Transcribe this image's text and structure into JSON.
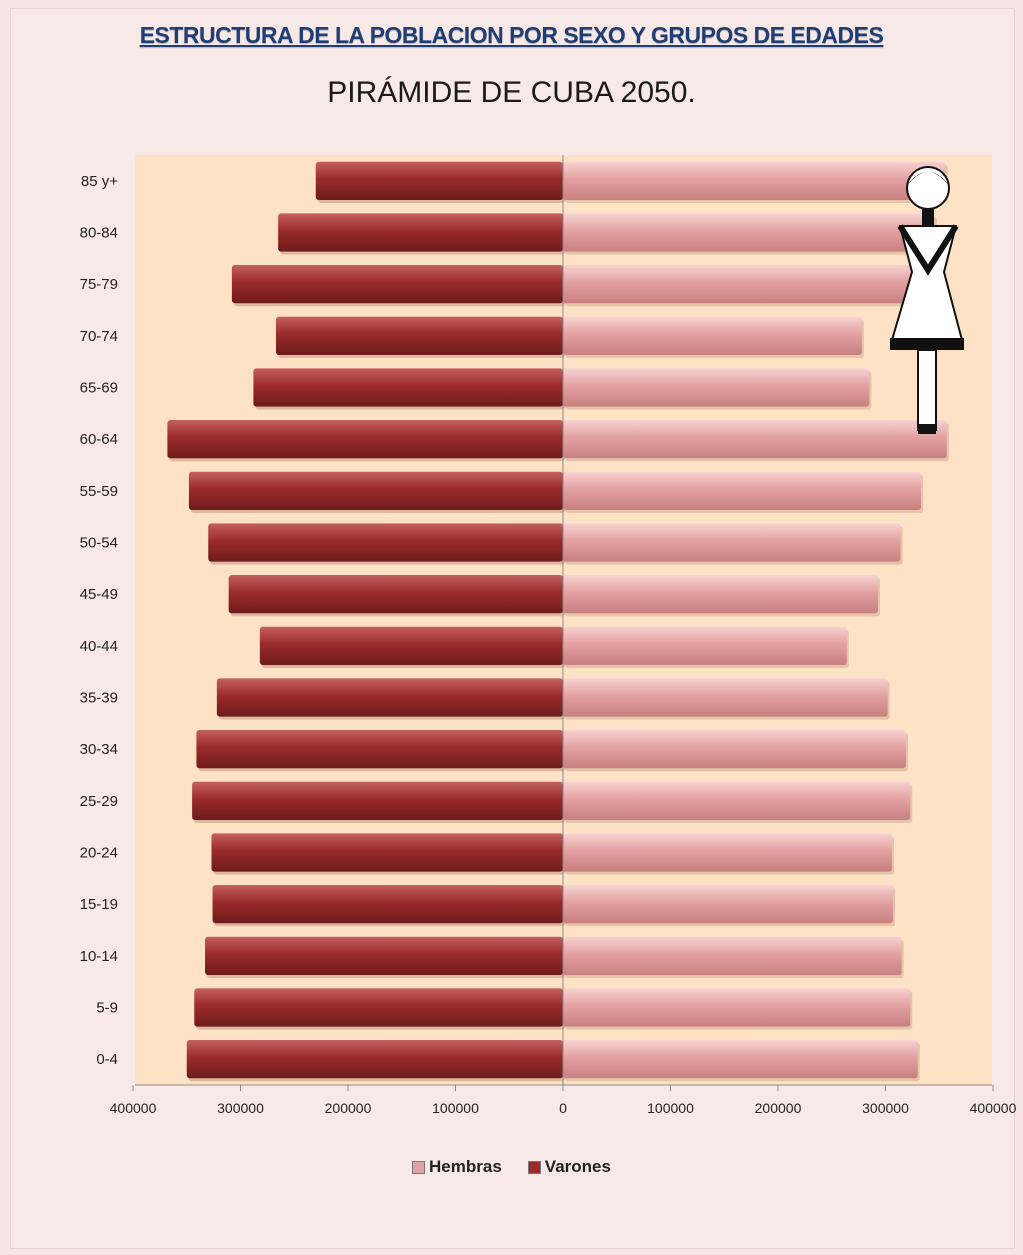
{
  "title": "ESTRUCTURA DE LA POBLACION POR SEXO Y GRUPOS DE EDADES",
  "subtitle": "PIRÁMIDE DE CUBA 2050.",
  "colors": {
    "plot_background": "#fde2c6",
    "hembras": "#e3a1a1",
    "varones": "#9b2b2b"
  },
  "legend": {
    "hembras": "Hembras",
    "varones": "Varones"
  },
  "chart_data": {
    "type": "bar",
    "orientation": "horizontal",
    "layout": "population-pyramid",
    "title": "ESTRUCTURA DE LA POBLACION POR SEXO Y GRUPOS DE EDADES",
    "subtitle": "PIRÁMIDE DE CUBA 2050.",
    "categories": [
      "85 y+",
      "80-84",
      "75-79",
      "70-74",
      "65-69",
      "60-64",
      "55-59",
      "50-54",
      "45-49",
      "40-44",
      "35-39",
      "30-34",
      "25-29",
      "20-24",
      "15-19",
      "10-14",
      "5-9",
      "0-4"
    ],
    "series": [
      {
        "name": "Varones",
        "side": "left",
        "color": "#9b2b2b",
        "values": [
          230000,
          265000,
          308000,
          267000,
          288000,
          368000,
          348000,
          330000,
          311000,
          282000,
          322000,
          341000,
          345000,
          327000,
          326000,
          333000,
          343000,
          350000
        ]
      },
      {
        "name": "Hembras",
        "side": "right",
        "color": "#e3a1a1",
        "values": [
          356000,
          346000,
          332000,
          278000,
          285000,
          357000,
          333000,
          314000,
          293000,
          264000,
          302000,
          319000,
          323000,
          306000,
          307000,
          315000,
          323000,
          330000
        ]
      }
    ],
    "xlim": [
      -400000,
      400000
    ],
    "x_tick_values": [
      -400000,
      -300000,
      -200000,
      -100000,
      0,
      100000,
      200000,
      300000,
      400000
    ],
    "x_tick_labels": [
      "400000",
      "300000",
      "200000",
      "100000",
      "0",
      "100000",
      "200000",
      "300000",
      "400000"
    ],
    "xlabel": "",
    "ylabel": "",
    "grid": false,
    "legend_position": "bottom"
  }
}
